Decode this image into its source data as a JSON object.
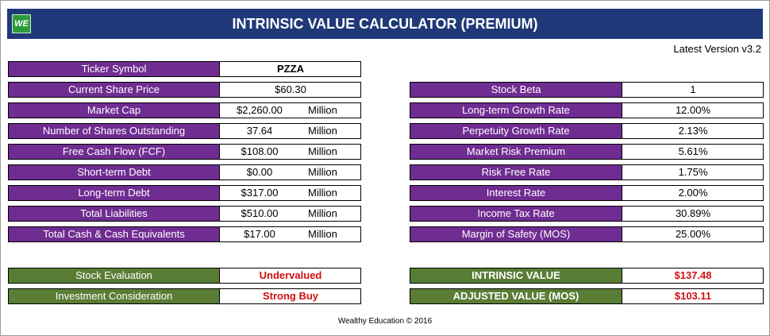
{
  "header": {
    "title": "INTRINSIC VALUE CALCULATOR (PREMIUM)",
    "logo_text": "WE"
  },
  "version": "Latest Version v3.2",
  "left": [
    {
      "label": "Ticker Symbol",
      "value": "PZZA",
      "unit": ""
    },
    {
      "label": "Current Share Price",
      "value": "$60.30",
      "unit": ""
    },
    {
      "label": "Market Cap",
      "value": "$2,260.00",
      "unit": "Million"
    },
    {
      "label": "Number of Shares Outstanding",
      "value": "37.64",
      "unit": "Million"
    },
    {
      "label": "Free Cash Flow (FCF)",
      "value": "$108.00",
      "unit": "Million"
    },
    {
      "label": "Short-term Debt",
      "value": "$0.00",
      "unit": "Million"
    },
    {
      "label": "Long-term Debt",
      "value": "$317.00",
      "unit": "Million"
    },
    {
      "label": "Total Liabilities",
      "value": "$510.00",
      "unit": "Million"
    },
    {
      "label": "Total Cash & Cash Equivalents",
      "value": "$17.00",
      "unit": "Million"
    }
  ],
  "right": [
    {
      "label": "Stock Beta",
      "value": "1"
    },
    {
      "label": "Long-term Growth Rate",
      "value": "12.00%"
    },
    {
      "label": "Perpetuity Growth Rate",
      "value": "2.13%"
    },
    {
      "label": "Market Risk Premium",
      "value": "5.61%"
    },
    {
      "label": "Risk Free Rate",
      "value": "1.75%"
    },
    {
      "label": "Interest Rate",
      "value": "2.00%"
    },
    {
      "label": "Income Tax Rate",
      "value": "30.89%"
    },
    {
      "label": "Margin of Safety (MOS)",
      "value": "25.00%"
    }
  ],
  "results_left": [
    {
      "label": "Stock Evaluation",
      "value": "Undervalued"
    },
    {
      "label": "Investment Consideration",
      "value": "Strong Buy"
    }
  ],
  "results_right": [
    {
      "label": "INTRINSIC VALUE",
      "value": "$137.48"
    },
    {
      "label": "ADJUSTED VALUE (MOS)",
      "value": "$103.11"
    }
  ],
  "footer": "Wealthy Education © 2016",
  "colors": {
    "header": "#1f3978",
    "label_purple": "#6f2c91",
    "label_green": "#5a7d35",
    "highlight_red": "#d01010"
  }
}
